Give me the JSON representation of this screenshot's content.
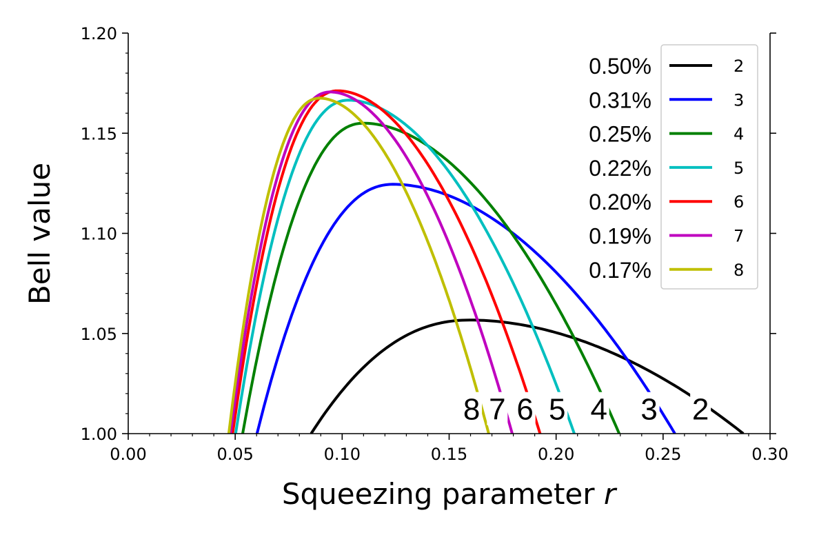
{
  "chart_data": {
    "type": "line",
    "title": "",
    "xlabel": "Squeezing parameter",
    "xlabel_var": "r",
    "ylabel": "Bell value",
    "xlim": [
      0.0,
      0.3
    ],
    "ylim": [
      1.0,
      1.2
    ],
    "x_ticks": [
      "0.00",
      "0.05",
      "0.10",
      "0.15",
      "0.20",
      "0.25",
      "0.30"
    ],
    "y_ticks": [
      "1.00",
      "1.05",
      "1.10",
      "1.15",
      "1.20"
    ],
    "legend_position": "top-right",
    "series": [
      {
        "name": "2",
        "legend_pct": "0.50%",
        "color": "#000000",
        "r_start": 0.0855,
        "r_end": 0.2875,
        "peak_r": 0.16,
        "peak_value": 1.0567
      },
      {
        "name": "3",
        "legend_pct": "0.31%",
        "color": "#0000ff",
        "r_start": 0.0602,
        "r_end": 0.2555,
        "peak_r": 0.124,
        "peak_value": 1.1245
      },
      {
        "name": "4",
        "legend_pct": "0.25%",
        "color": "#008000",
        "r_start": 0.0535,
        "r_end": 0.2295,
        "peak_r": 0.11,
        "peak_value": 1.155
      },
      {
        "name": "5",
        "legend_pct": "0.22%",
        "color": "#00bfbf",
        "r_start": 0.0502,
        "r_end": 0.2085,
        "peak_r": 0.103,
        "peak_value": 1.1665
      },
      {
        "name": "6",
        "legend_pct": "0.20%",
        "color": "#ff0000",
        "r_start": 0.0488,
        "r_end": 0.1925,
        "peak_r": 0.098,
        "peak_value": 1.1712
      },
      {
        "name": "7",
        "legend_pct": "0.19%",
        "color": "#bf00bf",
        "r_start": 0.0478,
        "r_end": 0.1795,
        "peak_r": 0.0945,
        "peak_value": 1.1706
      },
      {
        "name": "8",
        "legend_pct": "0.17%",
        "color": "#bfbf00",
        "r_start": 0.047,
        "r_end": 0.1685,
        "peak_r": 0.0895,
        "peak_value": 1.1675
      }
    ],
    "curve_labels": [
      {
        "text": "8",
        "r": 0.1605
      },
      {
        "text": "7",
        "r": 0.1725
      },
      {
        "text": "6",
        "r": 0.1855
      },
      {
        "text": "5",
        "r": 0.2005
      },
      {
        "text": "4",
        "r": 0.22
      },
      {
        "text": "3",
        "r": 0.2435
      },
      {
        "text": "2",
        "r": 0.2675
      }
    ],
    "curve_label_value": 1.0125
  }
}
